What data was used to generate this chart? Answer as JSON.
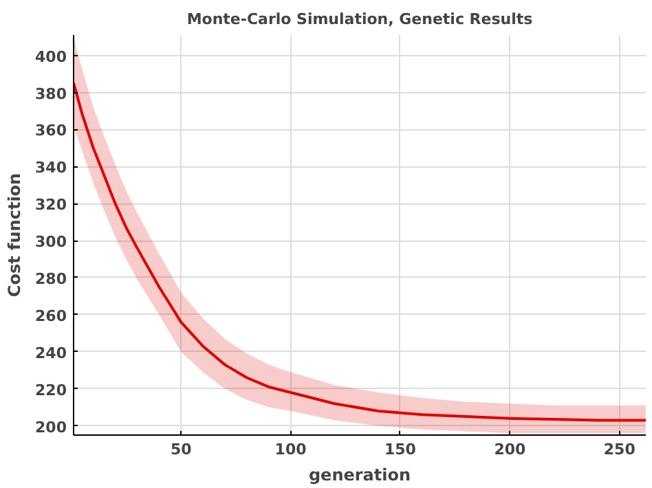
{
  "chart_data": {
    "type": "line",
    "title": "Monte-Carlo Simulation, Genetic Results",
    "xlabel": "generation",
    "ylabel": "Cost function",
    "x": [
      1,
      5,
      10,
      15,
      20,
      25,
      30,
      40,
      50,
      60,
      70,
      80,
      90,
      100,
      120,
      140,
      160,
      180,
      200,
      220,
      240,
      262
    ],
    "series": [
      {
        "color": "#e00000",
        "values": [
          385,
          368,
          350,
          335,
          320,
          307,
          296,
          275,
          256,
          243,
          233,
          226,
          221,
          218,
          212,
          208,
          206,
          205,
          204,
          203.5,
          203,
          203
        ],
        "lower": [
          362,
          348,
          331,
          316,
          302,
          290,
          279,
          260,
          240,
          229,
          220,
          214,
          210,
          208,
          203,
          200,
          198,
          197,
          196,
          196,
          196,
          196
        ],
        "upper": [
          410,
          392,
          372,
          356,
          341,
          327,
          315,
          293,
          272,
          258,
          247,
          239,
          233,
          229,
          222,
          218,
          215,
          213,
          212,
          211,
          211,
          211
        ]
      }
    ],
    "xlim": [
      1,
      262
    ],
    "ylim": [
      195,
      411
    ],
    "xticks": [
      50,
      100,
      150,
      200,
      250
    ],
    "yticks": [
      200,
      220,
      240,
      260,
      280,
      300,
      320,
      340,
      360,
      380,
      400
    ],
    "grid": true,
    "line_style": "solid"
  }
}
